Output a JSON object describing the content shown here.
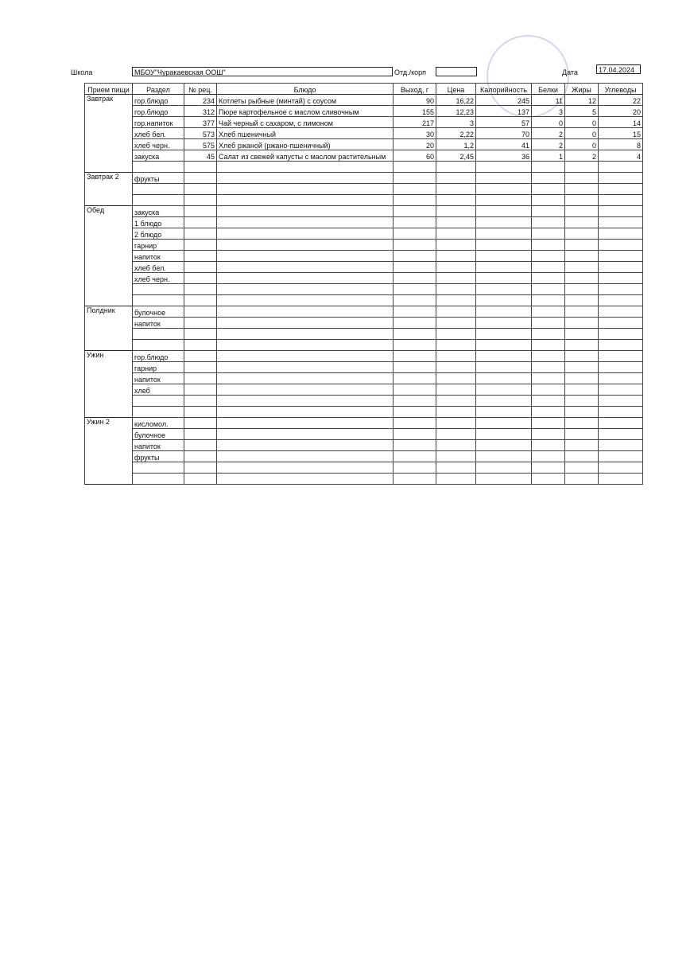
{
  "header": {
    "school_label": "Школа",
    "school": "МБОУ\"Чуракаевская ООШ\"",
    "dept_label": "Отд./корп",
    "date_label": "Дата",
    "date": "17.04.2024"
  },
  "table": {
    "columns": [
      "Прием пищи",
      "Раздел",
      "№ рец.",
      "Блюдо",
      "Выход, г",
      "Цена",
      "Калорийность",
      "Белки",
      "Жиры",
      "Углеводы"
    ],
    "sections": [
      {
        "meal": "Завтрак",
        "rows": [
          [
            "гор.блюдо",
            "234",
            "Котлеты рыбные (минтай) с соусом",
            "90",
            "16,22",
            "245",
            "11",
            "12",
            "22"
          ],
          [
            "гор.блюдо",
            "312",
            "Пюре картофельное с маслом сливочным",
            "155",
            "12,23",
            "137",
            "3",
            "5",
            "20"
          ],
          [
            "гор.напиток",
            "377",
            "Чай черный с сахаром, с лимоном",
            "217",
            "3",
            "57",
            "0",
            "0",
            "14"
          ],
          [
            "хлеб бел.",
            "573",
            "Хлеб пшеничный",
            "30",
            "2,22",
            "70",
            "2",
            "0",
            "15"
          ],
          [
            "хлеб черн.",
            "575",
            "Хлеб ржаной (ржано-пшеничный)",
            "20",
            "1,2",
            "41",
            "2",
            "0",
            "8"
          ],
          [
            "закуска",
            "45",
            "Салат из свежей капусты с маслом растительным",
            "60",
            "2,45",
            "36",
            "1",
            "2",
            "4"
          ],
          []
        ]
      },
      {
        "meal": "Завтрак 2",
        "rows": [
          [
            "фрукты"
          ],
          [],
          []
        ]
      },
      {
        "meal": "Обед",
        "rows": [
          [
            "закуска"
          ],
          [
            "1 блюдо"
          ],
          [
            "2 блюдо"
          ],
          [
            "гарнир"
          ],
          [
            "напиток"
          ],
          [
            "хлеб бел."
          ],
          [
            "хлеб черн."
          ],
          [],
          []
        ]
      },
      {
        "meal": "Полдник",
        "rows": [
          [
            "булочное"
          ],
          [
            "напиток"
          ],
          [],
          []
        ]
      },
      {
        "meal": "Ужин",
        "rows": [
          [
            "гор.блюдо"
          ],
          [
            "гарнир"
          ],
          [
            "напиток"
          ],
          [
            "хлеб"
          ],
          [],
          []
        ]
      },
      {
        "meal": "Ужин 2",
        "rows": [
          [
            "кисломол."
          ],
          [
            "булочное"
          ],
          [
            "напиток"
          ],
          [
            "фрукты"
          ],
          [],
          []
        ]
      }
    ]
  }
}
